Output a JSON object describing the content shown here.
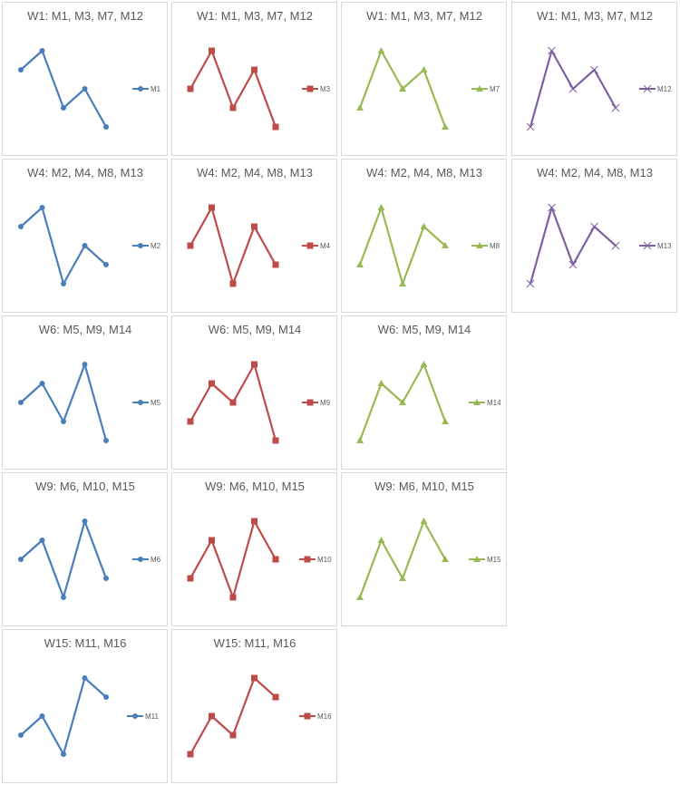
{
  "chart_data": [
    {
      "type": "line",
      "title": "W1: M1, M3, M7, M12",
      "series": [
        {
          "name": "M1",
          "values": [
            4,
            5,
            2,
            3,
            1
          ]
        }
      ],
      "color": "#4A7EBB",
      "marker": "circle",
      "legend": "right"
    },
    {
      "type": "line",
      "title": "W1: M1, M3, M7, M12",
      "series": [
        {
          "name": "M3",
          "values": [
            3,
            5,
            2,
            4,
            1
          ]
        }
      ],
      "color": "#BE4B48",
      "marker": "square",
      "legend": "right"
    },
    {
      "type": "line",
      "title": "W1: M1, M3, M7, M12",
      "series": [
        {
          "name": "M7",
          "values": [
            2,
            5,
            3,
            4,
            1
          ]
        }
      ],
      "color": "#98B954",
      "marker": "triangle",
      "legend": "right"
    },
    {
      "type": "line",
      "title": "W1: M1, M3, M7, M12",
      "series": [
        {
          "name": "M12",
          "values": [
            1,
            5,
            3,
            4,
            2
          ]
        }
      ],
      "color": "#7D60A0",
      "marker": "x",
      "legend": "right"
    },
    {
      "type": "line",
      "title": "W4: M2, M4, M8, M13",
      "series": [
        {
          "name": "M2",
          "values": [
            4,
            5,
            1,
            3,
            2
          ]
        }
      ],
      "color": "#4A7EBB",
      "marker": "circle",
      "legend": "right"
    },
    {
      "type": "line",
      "title": "W4: M2, M4, M8, M13",
      "series": [
        {
          "name": "M4",
          "values": [
            3,
            5,
            1,
            4,
            2
          ]
        }
      ],
      "color": "#BE4B48",
      "marker": "square",
      "legend": "right"
    },
    {
      "type": "line",
      "title": "W4: M2, M4, M8, M13",
      "series": [
        {
          "name": "M8",
          "values": [
            2,
            5,
            1,
            4,
            3
          ]
        }
      ],
      "color": "#98B954",
      "marker": "triangle",
      "legend": "right"
    },
    {
      "type": "line",
      "title": "W4: M2, M4, M8, M13",
      "series": [
        {
          "name": "M13",
          "values": [
            1,
            5,
            2,
            4,
            3
          ]
        }
      ],
      "color": "#7D60A0",
      "marker": "x",
      "legend": "right"
    },
    {
      "type": "line",
      "title": "W6: M5, M9, M14",
      "series": [
        {
          "name": "M5",
          "values": [
            3,
            4,
            2,
            5,
            1
          ]
        }
      ],
      "color": "#4A7EBB",
      "marker": "circle",
      "legend": "right"
    },
    {
      "type": "line",
      "title": "W6: M5, M9, M14",
      "series": [
        {
          "name": "M9",
          "values": [
            2,
            4,
            3,
            5,
            1
          ]
        }
      ],
      "color": "#BE4B48",
      "marker": "square",
      "legend": "right"
    },
    {
      "type": "line",
      "title": "W6: M5, M9, M14",
      "series": [
        {
          "name": "M14",
          "values": [
            1,
            4,
            3,
            5,
            2
          ]
        }
      ],
      "color": "#98B954",
      "marker": "triangle",
      "legend": "right"
    },
    {
      "type": "line",
      "title": "W9: M6, M10, M15",
      "series": [
        {
          "name": "M6",
          "values": [
            3,
            4,
            1,
            5,
            2
          ]
        }
      ],
      "color": "#4A7EBB",
      "marker": "circle",
      "legend": "right"
    },
    {
      "type": "line",
      "title": "W9: M6, M10, M15",
      "series": [
        {
          "name": "M10",
          "values": [
            2,
            4,
            1,
            5,
            3
          ]
        }
      ],
      "color": "#BE4B48",
      "marker": "square",
      "legend": "right"
    },
    {
      "type": "line",
      "title": "W9: M6, M10, M15",
      "series": [
        {
          "name": "M15",
          "values": [
            1,
            4,
            2,
            5,
            3
          ]
        }
      ],
      "color": "#98B954",
      "marker": "triangle",
      "legend": "right"
    },
    {
      "type": "line",
      "title": "W15: M11, M16",
      "series": [
        {
          "name": "M11",
          "values": [
            2,
            3,
            1,
            5,
            4
          ]
        }
      ],
      "color": "#4A7EBB",
      "marker": "circle",
      "legend": "right"
    },
    {
      "type": "line",
      "title": "W15: M11, M16",
      "series": [
        {
          "name": "M16",
          "values": [
            1,
            3,
            2,
            5,
            4
          ]
        }
      ],
      "color": "#BE4B48",
      "marker": "square",
      "legend": "right"
    }
  ]
}
